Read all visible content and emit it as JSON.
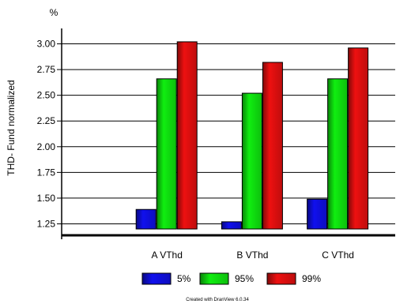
{
  "chart_data": {
    "type": "bar",
    "unit_label": "%",
    "ylabel": "THD- Fund normalized",
    "xlabel": "",
    "categories": [
      "A VThd",
      "B VThd",
      "C VThd"
    ],
    "series": [
      {
        "name": "5%",
        "color": "#1010ee",
        "values": [
          1.39,
          1.27,
          1.49
        ]
      },
      {
        "name": "95%",
        "color": "#10ee10",
        "values": [
          2.66,
          2.52,
          2.66
        ]
      },
      {
        "name": "99%",
        "color": "#ee1010",
        "values": [
          3.02,
          2.82,
          2.96
        ]
      }
    ],
    "ylim": [
      1.2,
      3.15
    ],
    "yticks": [
      1.25,
      1.5,
      1.75,
      2.0,
      2.25,
      2.5,
      2.75,
      3.0
    ],
    "ytick_labels": [
      "1.25",
      "1.50",
      "1.75",
      "2.00",
      "2.25",
      "2.50",
      "2.75",
      "3.00"
    ],
    "grid": true,
    "legend_position": "bottom"
  },
  "footer": {
    "credit": "Created with DranView 6.0.34"
  }
}
